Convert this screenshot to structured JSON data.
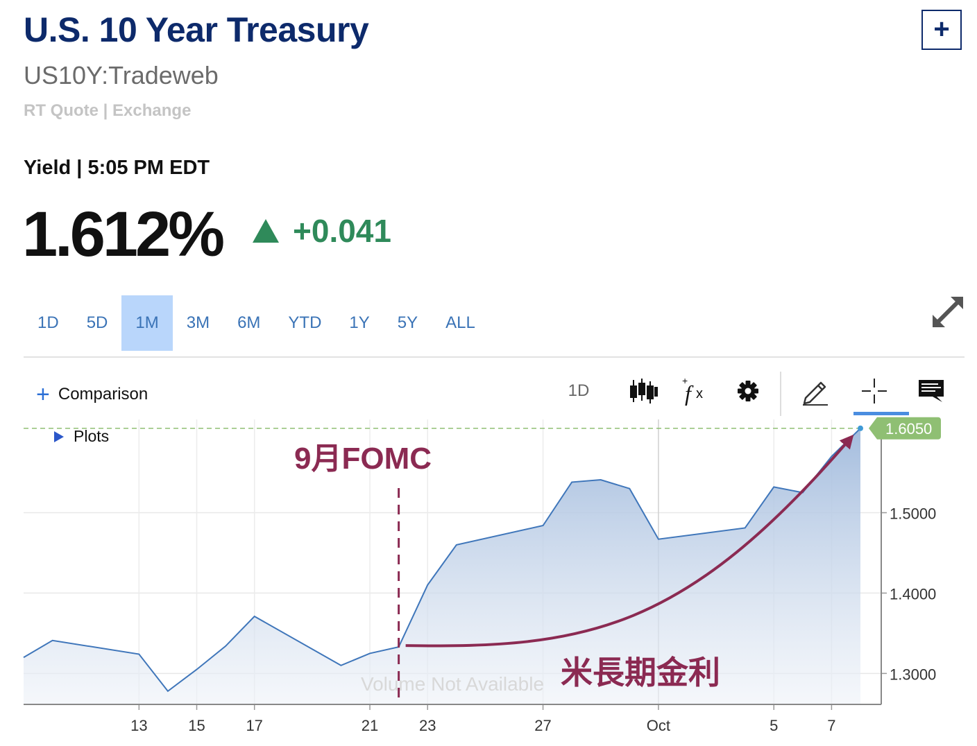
{
  "header": {
    "title": "U.S. 10 Year Treasury",
    "add_label": "+",
    "symbol": "US10Y:Tradeweb",
    "quote_type": "RT Quote | Exchange",
    "yield_label": "Yield | 5:05 PM EDT",
    "price": "1.612%",
    "change": "+0.041",
    "change_color": "#2f8a5a"
  },
  "ranges": [
    "1D",
    "5D",
    "1M",
    "3M",
    "6M",
    "YTD",
    "1Y",
    "5Y",
    "ALL"
  ],
  "active_range": "1M",
  "toolbar": {
    "comparison_label": "Comparison",
    "interval_label": "1D",
    "tools": [
      "candlestick-icon",
      "function-icon",
      "gear-icon",
      "pencil-icon",
      "crosshair-icon",
      "comment-icon"
    ],
    "active_tool": "crosshair-icon"
  },
  "plots_label": "Plots",
  "chart_data": {
    "type": "area",
    "x": [
      "Sep 9",
      "Sep 10",
      "Sep 13",
      "Sep 14",
      "Sep 15",
      "Sep 16",
      "Sep 17",
      "Sep 20",
      "Sep 21",
      "Sep 22",
      "Sep 23",
      "Sep 24",
      "Sep 27",
      "Sep 28",
      "Sep 29",
      "Sep 30",
      "Oct 1",
      "Oct 4",
      "Oct 5",
      "Oct 6",
      "Oct 7",
      "Oct 8"
    ],
    "series": [
      {
        "values": [
          1.32,
          1.341,
          1.324,
          1.278,
          1.305,
          1.334,
          1.371,
          1.31,
          1.325,
          1.333,
          1.41,
          1.46,
          1.484,
          1.538,
          1.541,
          1.53,
          1.467,
          1.481,
          1.532,
          1.525,
          1.57,
          1.605
        ],
        "color": "#3f76ba"
      }
    ],
    "xtick_labels": [
      "13",
      "15",
      "17",
      "21",
      "23",
      "27",
      "Oct",
      "5",
      "7"
    ],
    "ytick_labels": [
      "1.3000",
      "1.4000",
      "1.5000"
    ],
    "yticks": [
      1.3,
      1.4,
      1.5
    ],
    "ylim": [
      1.2615,
      1.616
    ],
    "last_value_label": "1.6050",
    "last_value": 1.605,
    "last_value_color": "#8fbf73",
    "grid": true,
    "volume_note": "Volume Not Available",
    "annotations": {
      "event_label": "9月FOMC",
      "event_x": "Sep 22",
      "trend_label": "米長期金利",
      "annotation_color": "#8b2a52"
    }
  }
}
